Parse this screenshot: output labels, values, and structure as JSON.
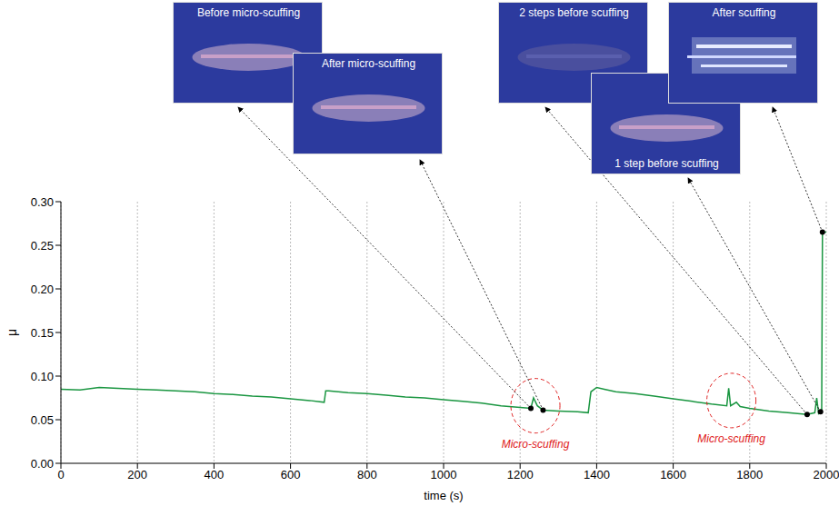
{
  "chart_data": {
    "type": "line",
    "x_label": "time (s)",
    "y_label": "μ",
    "xlim": [
      0,
      2000
    ],
    "xticks": [
      0,
      200,
      400,
      600,
      800,
      1000,
      1200,
      1400,
      1600,
      1800,
      2000
    ],
    "ylim": [
      0,
      0.3
    ],
    "yticks": [
      {
        "value": 0,
        "label": "0.00"
      },
      {
        "value": 0.05,
        "label": "0.05"
      },
      {
        "value": 0.1,
        "label": "0.10"
      },
      {
        "value": 0.15,
        "label": "0.15"
      },
      {
        "value": 0.2,
        "label": "0.20"
      },
      {
        "value": 0.25,
        "label": "0.25"
      },
      {
        "value": 0.3,
        "label": "0.30"
      }
    ],
    "grid": true,
    "color": "#1a9641",
    "x": [
      0,
      50,
      100,
      150,
      200,
      250,
      300,
      350,
      400,
      450,
      500,
      550,
      600,
      650,
      688,
      692,
      700,
      750,
      800,
      850,
      900,
      950,
      1000,
      1050,
      1100,
      1150,
      1200,
      1228,
      1235,
      1245,
      1260,
      1300,
      1350,
      1378,
      1385,
      1400,
      1420,
      1450,
      1500,
      1550,
      1600,
      1650,
      1700,
      1740,
      1745,
      1750,
      1765,
      1775,
      1800,
      1850,
      1900,
      1950,
      1970,
      1975,
      1980,
      1988,
      1990,
      2000
    ],
    "values": [
      0.085,
      0.084,
      0.087,
      0.086,
      0.085,
      0.084,
      0.083,
      0.082,
      0.08,
      0.079,
      0.077,
      0.076,
      0.074,
      0.072,
      0.07,
      0.083,
      0.083,
      0.081,
      0.08,
      0.078,
      0.076,
      0.075,
      0.073,
      0.071,
      0.069,
      0.066,
      0.064,
      0.063,
      0.075,
      0.066,
      0.061,
      0.06,
      0.059,
      0.058,
      0.082,
      0.087,
      0.085,
      0.082,
      0.08,
      0.077,
      0.074,
      0.071,
      0.068,
      0.066,
      0.086,
      0.066,
      0.07,
      0.065,
      0.063,
      0.06,
      0.058,
      0.056,
      0.058,
      0.075,
      0.057,
      0.06,
      0.265,
      0.265
    ],
    "annotations": [
      {
        "text": "Micro-scuffing",
        "x": 1240,
        "y": 0.066,
        "color": "#e02020"
      },
      {
        "text": "Micro-scuffing",
        "x": 1752,
        "y": 0.072,
        "color": "#e02020"
      }
    ],
    "insets": [
      {
        "label": "Before micro-scuffing",
        "x": 1228,
        "y": 0.063
      },
      {
        "label": "After micro-scuffing",
        "x": 1260,
        "y": 0.061
      },
      {
        "label": "2 steps before scuffing",
        "x": 1950,
        "y": 0.056
      },
      {
        "label": "1 step before scuffing",
        "x": 1985,
        "y": 0.059
      },
      {
        "label": "After scuffing",
        "x": 1990,
        "y": 0.265
      }
    ]
  }
}
